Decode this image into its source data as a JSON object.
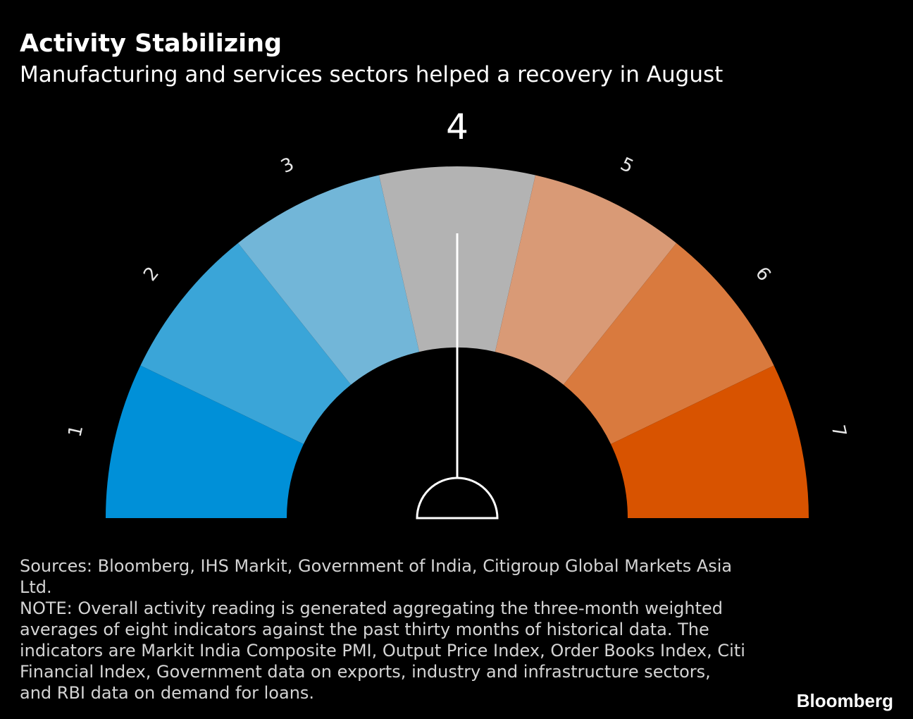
{
  "header": {
    "title": "Activity Stabilizing",
    "subtitle": "Manufacturing and services sectors helped a recovery in August"
  },
  "chart_data": {
    "type": "gauge",
    "segments": [
      {
        "label": "1",
        "color": "#0090d8"
      },
      {
        "label": "2",
        "color": "#3aa5d8"
      },
      {
        "label": "3",
        "color": "#72b6d8"
      },
      {
        "label": "4",
        "color": "#b3b3b3"
      },
      {
        "label": "5",
        "color": "#d99a76"
      },
      {
        "label": "6",
        "color": "#d97a3e"
      },
      {
        "label": "7",
        "color": "#d85300"
      }
    ],
    "scale_min": 1,
    "scale_max": 7,
    "reading": 4,
    "highlighted_label": "4"
  },
  "footer": {
    "sources": "Sources: Bloomberg, IHS Markit, Government of India, Citigroup Global Markets Asia Ltd.",
    "note": "NOTE: Overall activity reading is generated aggregating the three-month weighted averages of eight indicators against the past thirty months of historical data. The indicators are Markit India Composite PMI, Output Price Index, Order Books Index, Citi Financial Index, Government data on exports, industry and infrastructure sectors, and RBI data on demand for loans.",
    "brand": "Bloomberg"
  }
}
